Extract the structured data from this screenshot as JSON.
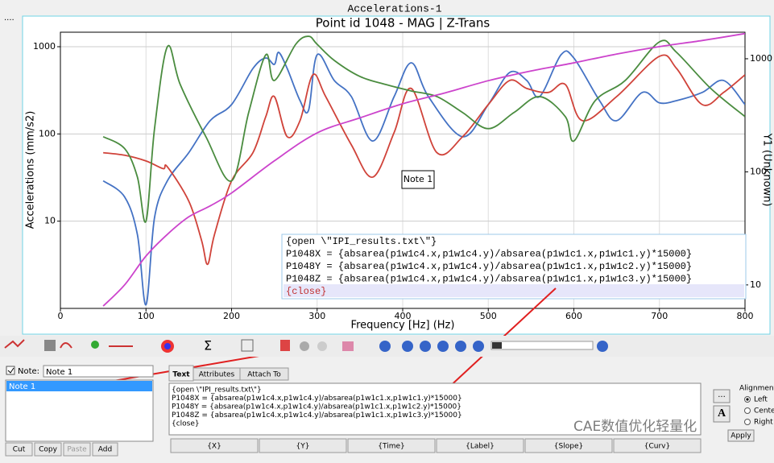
{
  "window_title": "Accelerations-1",
  "chart_data": {
    "type": "line",
    "title": "Point id 1048 - MAG | Z-Trans",
    "xlabel": "Frequency [Hz] (Hz)",
    "ylabel": "Accelerations (mm/s2)",
    "y2label": "Y1 (Unknown)",
    "xlim": [
      0,
      800
    ],
    "ylim": [
      1,
      1466
    ],
    "y2lim": [
      6.2,
      1717
    ],
    "yscale": "log",
    "y2scale": "log",
    "grid": true,
    "xticks": [
      0,
      100,
      200,
      300,
      400,
      500,
      600,
      700,
      800
    ],
    "yticks": [
      10,
      100,
      1000
    ],
    "y2ticks": [
      10,
      100,
      1000
    ],
    "series": [
      {
        "color": "#4472c4",
        "x": [
          50,
          75,
          90,
          100,
          110,
          125,
          150,
          175,
          200,
          225,
          240,
          250,
          255,
          265,
          280,
          290,
          300,
          320,
          340,
          365,
          390,
          410,
          430,
          470,
          500,
          525,
          545,
          560,
          585,
          600,
          630,
          650,
          680,
          700,
          720,
          750,
          775,
          800
        ],
        "values": [
          29,
          19,
          7,
          1.1,
          11,
          29,
          61,
          142,
          217,
          563,
          742,
          627,
          862,
          563,
          241,
          187,
          808,
          410,
          268,
          83,
          268,
          654,
          268,
          93,
          217,
          507,
          410,
          268,
          808,
          742,
          241,
          142,
          299,
          227,
          241,
          299,
          410,
          217
        ]
      },
      {
        "color": "#d0433a",
        "x": [
          50,
          75,
          100,
          120,
          125,
          150,
          165,
          172,
          180,
          200,
          225,
          240,
          250,
          265,
          280,
          295,
          310,
          340,
          365,
          390,
          410,
          440,
          470,
          500,
          525,
          545,
          570,
          590,
          610,
          650,
          700,
          720,
          750,
          775,
          800
        ],
        "values": [
          61,
          57,
          49,
          40,
          42,
          17,
          6,
          3.2,
          7,
          29,
          61,
          158,
          268,
          93,
          142,
          476,
          268,
          75,
          32,
          104,
          332,
          61,
          93,
          217,
          410,
          332,
          299,
          369,
          142,
          268,
          775,
          563,
          217,
          299,
          476
        ]
      },
      {
        "color": "#4a8c3f",
        "x": [
          50,
          75,
          90,
          100,
          110,
          125,
          140,
          170,
          200,
          220,
          240,
          250,
          275,
          290,
          300,
          320,
          350,
          380,
          410,
          440,
          470,
          500,
          530,
          560,
          590,
          600,
          625,
          660,
          700,
          720,
          760,
          800
        ],
        "values": [
          93,
          68,
          32,
          10,
          115,
          1000,
          369,
          93,
          29,
          176,
          808,
          410,
          1066,
          1317,
          1066,
          697,
          456,
          369,
          311,
          268,
          176,
          115,
          176,
          268,
          158,
          83,
          241,
          410,
          1136,
          862,
          332,
          158
        ]
      },
      {
        "color": "#cc44cc",
        "axis": "y2",
        "x": [
          50,
          75,
          100,
          125,
          150,
          175,
          200,
          250,
          300,
          350,
          400,
          450,
          500,
          550,
          600,
          650,
          700,
          750,
          800
        ],
        "values": [
          6.5,
          10,
          18,
          28,
          40,
          50,
          65,
          125,
          221,
          300,
          400,
          500,
          640,
          780,
          920,
          1100,
          1280,
          1450,
          1670
        ]
      }
    ],
    "annotations": [
      "Note 1"
    ]
  },
  "note": {
    "label": "Note:",
    "name": "Note 1",
    "list": [
      "Note 1"
    ],
    "lines": [
      "{open \\\"IPI_results.txt\\\"}",
      "P1048X = {absarea(p1w1c4.x,p1w1c4.y)/absarea(p1w1c1.x,p1w1c1.y)*15000}",
      "P1048Y = {absarea(p1w1c4.x,p1w1c4.y)/absarea(p1w1c1.x,p1w1c2.y)*15000}",
      "P1048Z = {absarea(p1w1c4.x,p1w1c4.y)/absarea(p1w1c1.x,p1w1c3.y)*15000}",
      "{close}"
    ],
    "buttons": [
      "Cut",
      "Copy",
      "Paste",
      "Add"
    ],
    "tabs": [
      "Text",
      "Attributes",
      "Attach To"
    ],
    "inserts": [
      "{X}",
      "{Y}",
      "{Time}",
      "{Label}",
      "{Slope}",
      "{Curv}"
    ],
    "alignment": {
      "label": "Alignment:",
      "options": [
        "Left",
        "Center",
        "Right"
      ]
    },
    "apply": "Apply",
    "more": "...",
    "font": "A"
  },
  "watermark": "CAE数值优化轻量化"
}
